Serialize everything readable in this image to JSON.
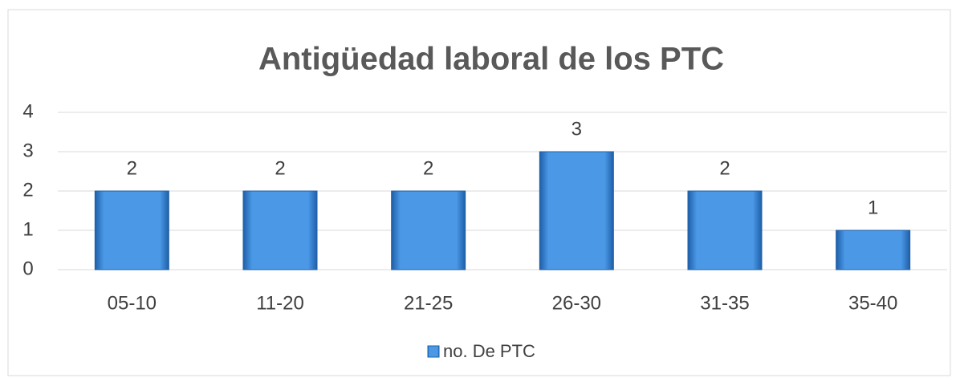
{
  "chart_data": {
    "type": "bar",
    "title": "Antigüedad laboral de los PTC",
    "categories": [
      "05-10",
      "11-20",
      "21-25",
      "26-30",
      "31-35",
      "35-40"
    ],
    "series": [
      {
        "name": "no. De PTC",
        "color": "#4a98e6",
        "values": [
          2,
          2,
          2,
          3,
          2,
          1
        ]
      }
    ],
    "ylim": [
      0,
      4
    ],
    "yticks": [
      0,
      1,
      2,
      3,
      4
    ],
    "grid": true,
    "legend": "bottom"
  }
}
